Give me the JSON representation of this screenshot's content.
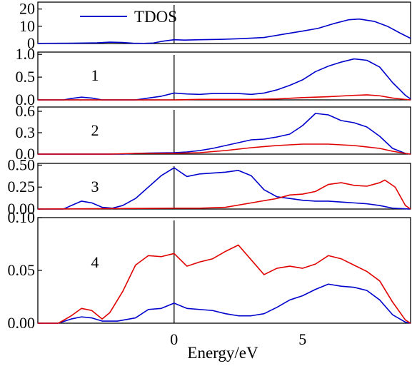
{
  "chart_data": {
    "type": "line",
    "xlabel": "Energy/eV",
    "xlim": [
      -5.3,
      9.2
    ],
    "x_ticks": [
      "0",
      "5"
    ],
    "legend": [
      {
        "name": "TDOS",
        "color": "#0000cc"
      }
    ],
    "fermi_level": 0,
    "colors": {
      "blue": "#0000cc",
      "red": "#e00000"
    },
    "panels": [
      {
        "label": "",
        "ylim": [
          0,
          24
        ],
        "yticks": [
          0,
          10,
          20
        ],
        "ytick_labels": [
          "0",
          "10",
          "20"
        ],
        "series": [
          {
            "name": "TDOS",
            "color": "#0000cc",
            "points": [
              [
                -5.3,
                0.1
              ],
              [
                -4,
                0.2
              ],
              [
                -3,
                0.4
              ],
              [
                -2.5,
                0.8
              ],
              [
                -2,
                0.6
              ],
              [
                -1.6,
                0.2
              ],
              [
                -1.2,
                0.1
              ],
              [
                -0.8,
                0.3
              ],
              [
                -0.5,
                1.2
              ],
              [
                0,
                2.2
              ],
              [
                0.4,
                2.0
              ],
              [
                1,
                2.2
              ],
              [
                1.8,
                2.4
              ],
              [
                2.6,
                2.8
              ],
              [
                3.5,
                3.5
              ],
              [
                4.3,
                5.5
              ],
              [
                5,
                7.2
              ],
              [
                5.6,
                8.8
              ],
              [
                6.2,
                11.5
              ],
              [
                6.8,
                13.8
              ],
              [
                7.2,
                14.2
              ],
              [
                7.8,
                12.8
              ],
              [
                8.3,
                10
              ],
              [
                8.8,
                6
              ],
              [
                9.2,
                3
              ]
            ]
          }
        ]
      },
      {
        "label": "1",
        "ylim": [
          0,
          1.05
        ],
        "yticks": [
          0,
          0.5,
          1.0
        ],
        "ytick_labels": [
          "0.0",
          "0.5",
          "1.0"
        ],
        "series": [
          {
            "name": "blue",
            "color": "#0000cc",
            "points": [
              [
                -5.3,
                0
              ],
              [
                -4.3,
                0
              ],
              [
                -4,
                0.03
              ],
              [
                -3.6,
                0.06
              ],
              [
                -3.2,
                0.04
              ],
              [
                -2.8,
                0
              ],
              [
                -1.5,
                0
              ],
              [
                -1.0,
                0.04
              ],
              [
                -0.5,
                0.08
              ],
              [
                0,
                0.15
              ],
              [
                0.5,
                0.13
              ],
              [
                1.0,
                0.12
              ],
              [
                1.5,
                0.14
              ],
              [
                2.0,
                0.14
              ],
              [
                2.5,
                0.14
              ],
              [
                3.0,
                0.12
              ],
              [
                3.5,
                0.15
              ],
              [
                4,
                0.22
              ],
              [
                4.5,
                0.32
              ],
              [
                5.0,
                0.44
              ],
              [
                5.5,
                0.62
              ],
              [
                6.0,
                0.74
              ],
              [
                6.5,
                0.83
              ],
              [
                7.0,
                0.9
              ],
              [
                7.5,
                0.87
              ],
              [
                8,
                0.72
              ],
              [
                8.5,
                0.38
              ],
              [
                9,
                0.1
              ],
              [
                9.2,
                0.02
              ]
            ]
          },
          {
            "name": "red",
            "color": "#e00000",
            "points": [
              [
                -5.3,
                0
              ],
              [
                0,
                0
              ],
              [
                1,
                0.01
              ],
              [
                2,
                0.01
              ],
              [
                3,
                0.01
              ],
              [
                4,
                0.02
              ],
              [
                5,
                0.05
              ],
              [
                6,
                0.07
              ],
              [
                7,
                0.1
              ],
              [
                7.5,
                0.11
              ],
              [
                8,
                0.09
              ],
              [
                8.5,
                0.04
              ],
              [
                9,
                0.01
              ],
              [
                9.2,
                0
              ]
            ]
          }
        ]
      },
      {
        "label": "2",
        "ylim": [
          0,
          0.66
        ],
        "yticks": [
          0,
          0.3,
          0.6
        ],
        "ytick_labels": [
          "0.0",
          "0.3",
          "0.6"
        ],
        "series": [
          {
            "name": "blue",
            "color": "#0000cc",
            "points": [
              [
                -5.3,
                0
              ],
              [
                -2.0,
                0
              ],
              [
                -1.5,
                0.01
              ],
              [
                -1.0,
                0.015
              ],
              [
                0,
                0.02
              ],
              [
                0.5,
                0.03
              ],
              [
                1.0,
                0.05
              ],
              [
                1.5,
                0.08
              ],
              [
                2.0,
                0.12
              ],
              [
                2.5,
                0.16
              ],
              [
                3.0,
                0.2
              ],
              [
                3.5,
                0.21
              ],
              [
                4.0,
                0.24
              ],
              [
                4.5,
                0.28
              ],
              [
                5.0,
                0.4
              ],
              [
                5.5,
                0.57
              ],
              [
                6.0,
                0.55
              ],
              [
                6.5,
                0.47
              ],
              [
                7.0,
                0.44
              ],
              [
                7.5,
                0.38
              ],
              [
                8.0,
                0.25
              ],
              [
                8.5,
                0.08
              ],
              [
                9.0,
                0.01
              ],
              [
                9.2,
                0
              ]
            ]
          },
          {
            "name": "red",
            "color": "#e00000",
            "points": [
              [
                -5.3,
                0
              ],
              [
                -2.5,
                0
              ],
              [
                -1.5,
                0.01
              ],
              [
                0,
                0.01
              ],
              [
                1,
                0.02
              ],
              [
                2,
                0.05
              ],
              [
                3,
                0.09
              ],
              [
                4,
                0.12
              ],
              [
                5,
                0.14
              ],
              [
                6,
                0.14
              ],
              [
                7,
                0.12
              ],
              [
                8,
                0.08
              ],
              [
                8.5,
                0.04
              ],
              [
                9,
                0.01
              ],
              [
                9.2,
                0
              ]
            ]
          }
        ]
      },
      {
        "label": "3",
        "ylim": [
          0,
          0.52
        ],
        "yticks": [
          0,
          0.25,
          0.5
        ],
        "ytick_labels": [
          "0.00",
          "0.25",
          "0.50"
        ],
        "series": [
          {
            "name": "blue",
            "color": "#0000cc",
            "points": [
              [
                -5.3,
                0
              ],
              [
                -4.3,
                0
              ],
              [
                -4.0,
                0.04
              ],
              [
                -3.6,
                0.09
              ],
              [
                -3.2,
                0.07
              ],
              [
                -2.8,
                0.02
              ],
              [
                -2.4,
                0.01
              ],
              [
                -2.0,
                0.04
              ],
              [
                -1.5,
                0.12
              ],
              [
                -0.5,
                0.38
              ],
              [
                0,
                0.47
              ],
              [
                0.5,
                0.37
              ],
              [
                1.0,
                0.4
              ],
              [
                1.5,
                0.41
              ],
              [
                2.0,
                0.42
              ],
              [
                2.5,
                0.44
              ],
              [
                3.0,
                0.38
              ],
              [
                3.5,
                0.22
              ],
              [
                4.0,
                0.14
              ],
              [
                4.5,
                0.12
              ],
              [
                5.0,
                0.1
              ],
              [
                5.5,
                0.09
              ],
              [
                6.0,
                0.09
              ],
              [
                6.5,
                0.08
              ],
              [
                7.0,
                0.07
              ],
              [
                7.5,
                0.06
              ],
              [
                8.0,
                0.04
              ],
              [
                8.5,
                0.01
              ],
              [
                9.2,
                0
              ]
            ]
          },
          {
            "name": "red",
            "color": "#e00000",
            "points": [
              [
                -5.3,
                0
              ],
              [
                0,
                0.01
              ],
              [
                1,
                0.01
              ],
              [
                2,
                0.02
              ],
              [
                3,
                0.07
              ],
              [
                4,
                0.12
              ],
              [
                4.5,
                0.16
              ],
              [
                5,
                0.17
              ],
              [
                5.5,
                0.2
              ],
              [
                6,
                0.28
              ],
              [
                6.5,
                0.3
              ],
              [
                7,
                0.27
              ],
              [
                7.5,
                0.26
              ],
              [
                8,
                0.3
              ],
              [
                8.2,
                0.33
              ],
              [
                8.6,
                0.25
              ],
              [
                9.0,
                0.04
              ],
              [
                9.2,
                0
              ]
            ]
          }
        ]
      },
      {
        "label": "4",
        "ylim": [
          0,
          0.1
        ],
        "yticks": [
          0,
          0.05,
          0.1
        ],
        "ytick_labels": [
          "0.00",
          "0.05",
          "0.10"
        ],
        "series": [
          {
            "name": "blue",
            "color": "#0000cc",
            "points": [
              [
                -5.3,
                0
              ],
              [
                -4.5,
                0
              ],
              [
                -4.0,
                0.004
              ],
              [
                -3.6,
                0.006
              ],
              [
                -3.2,
                0.005
              ],
              [
                -2.8,
                0.002
              ],
              [
                -2.2,
                0.002
              ],
              [
                -1.5,
                0.005
              ],
              [
                -1.0,
                0.013
              ],
              [
                -0.5,
                0.014
              ],
              [
                0,
                0.019
              ],
              [
                0.5,
                0.014
              ],
              [
                1.0,
                0.013
              ],
              [
                1.5,
                0.012
              ],
              [
                2.0,
                0.009
              ],
              [
                2.5,
                0.007
              ],
              [
                3.0,
                0.007
              ],
              [
                3.5,
                0.009
              ],
              [
                4.0,
                0.015
              ],
              [
                4.5,
                0.022
              ],
              [
                5.0,
                0.026
              ],
              [
                5.5,
                0.032
              ],
              [
                6.0,
                0.037
              ],
              [
                6.5,
                0.035
              ],
              [
                7.0,
                0.034
              ],
              [
                7.5,
                0.031
              ],
              [
                8.0,
                0.022
              ],
              [
                8.5,
                0.008
              ],
              [
                9.0,
                0.001
              ],
              [
                9.2,
                0
              ]
            ]
          },
          {
            "name": "red",
            "color": "#e00000",
            "points": [
              [
                -5.3,
                0
              ],
              [
                -4.5,
                0
              ],
              [
                -4.0,
                0.007
              ],
              [
                -3.6,
                0.014
              ],
              [
                -3.2,
                0.012
              ],
              [
                -2.8,
                0.004
              ],
              [
                -2.5,
                0.01
              ],
              [
                -2.0,
                0.03
              ],
              [
                -1.5,
                0.055
              ],
              [
                -1.0,
                0.064
              ],
              [
                -0.5,
                0.063
              ],
              [
                0,
                0.066
              ],
              [
                0.5,
                0.054
              ],
              [
                1.0,
                0.058
              ],
              [
                1.5,
                0.061
              ],
              [
                2.0,
                0.068
              ],
              [
                2.5,
                0.074
              ],
              [
                3.0,
                0.06
              ],
              [
                3.5,
                0.046
              ],
              [
                4.0,
                0.052
              ],
              [
                4.5,
                0.054
              ],
              [
                5.0,
                0.052
              ],
              [
                5.5,
                0.056
              ],
              [
                6.0,
                0.064
              ],
              [
                6.5,
                0.061
              ],
              [
                7.0,
                0.055
              ],
              [
                7.5,
                0.049
              ],
              [
                8.0,
                0.04
              ],
              [
                8.5,
                0.02
              ],
              [
                9.0,
                0.003
              ],
              [
                9.2,
                0
              ]
            ]
          }
        ]
      }
    ]
  }
}
